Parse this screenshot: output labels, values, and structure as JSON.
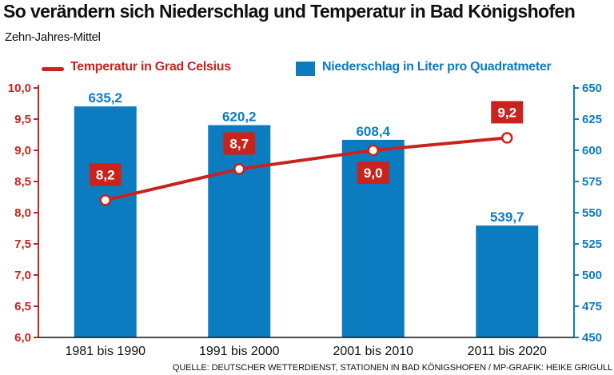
{
  "header": {
    "title": "So verändern sich Niederschlag und Temperatur in Bad Königshofen",
    "subtitle": "Zehn-Jahres-Mittel"
  },
  "legend": {
    "temperature": "Temperatur in Grad Celsius",
    "precipitation": "Niederschlag in Liter pro Quadratmeter"
  },
  "footer": {
    "source": "QUELLE: DEUTSCHER WETTERDIENST, STATIONEN IN BAD KÖNIGSHOFEN / MP-GRAFIK: HEIKE GRIGULL"
  },
  "colors": {
    "temperature": "#c8241d",
    "precipitation": "#0c7cc0",
    "label_box": "#c8241d"
  },
  "chart_data": {
    "type": "bar",
    "title": "So verändern sich Niederschlag und Temperatur in Bad Königshofen",
    "subtitle": "Zehn-Jahres-Mittel",
    "categories": [
      "1981 bis 1990",
      "1991 bis 2000",
      "2001 bis 2010",
      "2011 bis 2020"
    ],
    "series": [
      {
        "name": "Niederschlag in Liter pro Quadratmeter",
        "type": "bar",
        "axis": "right",
        "values": [
          635.2,
          620.2,
          608.4,
          539.7
        ],
        "labels": [
          "635,2",
          "620,2",
          "608,4",
          "539,7"
        ]
      },
      {
        "name": "Temperatur in Grad Celsius",
        "type": "line",
        "axis": "left",
        "values": [
          8.2,
          8.7,
          9.0,
          9.2
        ],
        "labels": [
          "8,2",
          "8,7",
          "9,0",
          "9,2"
        ]
      }
    ],
    "y_left": {
      "range": [
        6.0,
        10.0
      ],
      "ticks": [
        "6,0",
        "6,5",
        "7,0",
        "7,5",
        "8,0",
        "8,5",
        "9,0",
        "9,5",
        "10,0"
      ]
    },
    "y_right": {
      "range": [
        450,
        650
      ],
      "ticks": [
        "450",
        "475",
        "500",
        "525",
        "550",
        "575",
        "600",
        "625",
        "650"
      ]
    }
  }
}
